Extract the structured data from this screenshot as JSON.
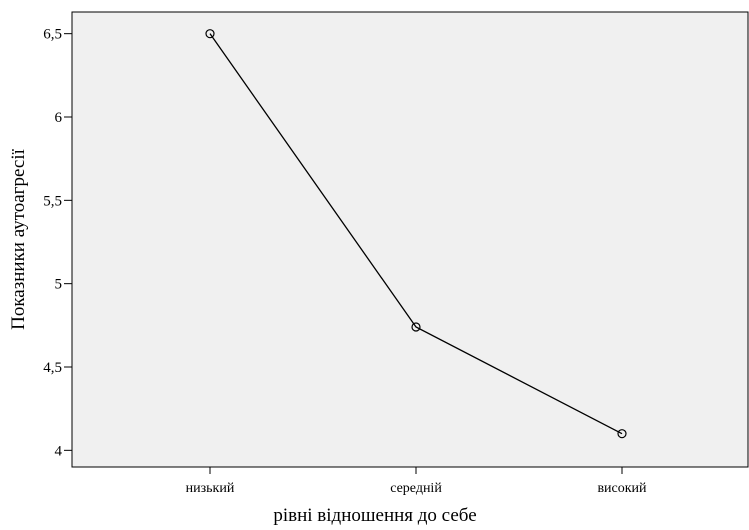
{
  "chart_data": {
    "type": "line",
    "title": "",
    "xlabel": "рівні відношення до себе",
    "ylabel": "Показники аутоагресії",
    "categories": [
      "низький",
      "середній",
      "високий"
    ],
    "series": [
      {
        "values": [
          6.5,
          4.74,
          4.1
        ]
      }
    ],
    "ylim": [
      3.9,
      6.63
    ],
    "yticks": [
      4,
      4.5,
      5,
      5.5,
      6,
      6.5
    ],
    "ytick_labels": [
      "4",
      "4,5",
      "5",
      "5,5",
      "6",
      "6,5"
    ],
    "grid": false,
    "marker": "open-circle",
    "colors": {
      "plot_background": "#f0f0f0",
      "line": "#000000",
      "page_background": "#ffffff"
    }
  }
}
